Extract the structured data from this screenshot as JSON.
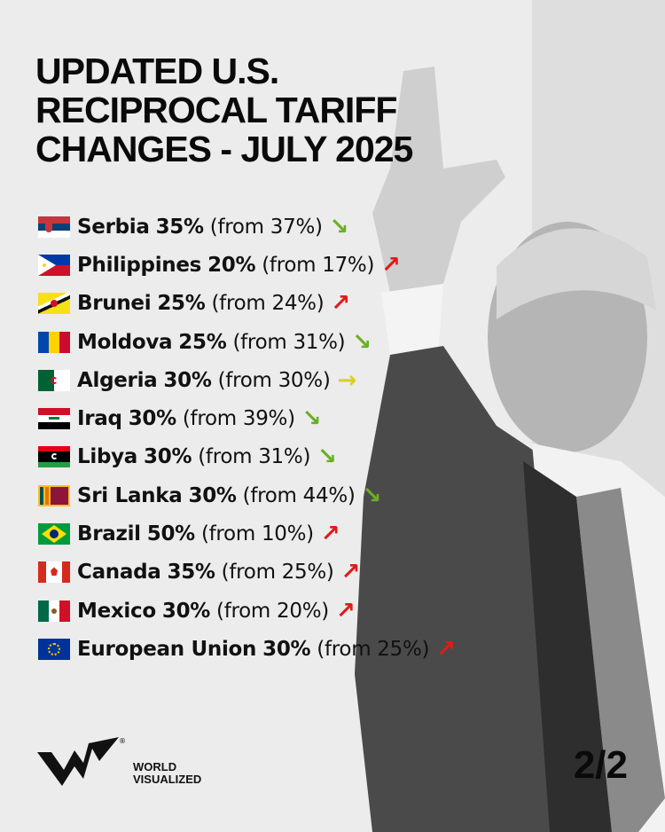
{
  "title_lines": [
    "UPDATED U.S.",
    "RECIPROCAL TARIFF",
    "CHANGES - JULY 2025"
  ],
  "colors": {
    "down": "#6ab023",
    "up": "#e01b1b",
    "same": "#d8d21a"
  },
  "items": [
    {
      "country": "Serbia",
      "new_rate": "35%",
      "previous": "(from 37%)",
      "trend": "down",
      "flag": "serbia-flag"
    },
    {
      "country": "Philippines",
      "new_rate": "20%",
      "previous": "(from 17%)",
      "trend": "up",
      "flag": "philippines-flag"
    },
    {
      "country": "Brunei",
      "new_rate": "25%",
      "previous": "(from 24%)",
      "trend": "up",
      "flag": "brunei-flag"
    },
    {
      "country": "Moldova",
      "new_rate": "25%",
      "previous": "(from 31%)",
      "trend": "down",
      "flag": "moldova-flag"
    },
    {
      "country": "Algeria",
      "new_rate": "30%",
      "previous": "(from 30%)",
      "trend": "same",
      "flag": "algeria-flag"
    },
    {
      "country": "Iraq",
      "new_rate": "30%",
      "previous": "(from 39%)",
      "trend": "down",
      "flag": "iraq-flag"
    },
    {
      "country": "Libya",
      "new_rate": "30%",
      "previous": "(from 31%)",
      "trend": "down",
      "flag": "libya-flag"
    },
    {
      "country": "Sri Lanka",
      "new_rate": "30%",
      "previous": "(from 44%)",
      "trend": "down",
      "flag": "sri-lanka-flag"
    },
    {
      "country": "Brazil",
      "new_rate": "50%",
      "previous": "(from 10%)",
      "trend": "up",
      "flag": "brazil-flag"
    },
    {
      "country": "Canada",
      "new_rate": "35%",
      "previous": "(from 25%)",
      "trend": "up",
      "flag": "canada-flag"
    },
    {
      "country": "Mexico",
      "new_rate": "30%",
      "previous": "(from 20%)",
      "trend": "up",
      "flag": "mexico-flag"
    },
    {
      "country": "European Union",
      "new_rate": "30%",
      "previous": "(from 25%)",
      "trend": "up",
      "flag": "eu-flag"
    }
  ],
  "brand": {
    "line1": "WORLD",
    "line2": "VISUALIZED",
    "logo_text": "WV"
  },
  "page_indicator": "2/2"
}
